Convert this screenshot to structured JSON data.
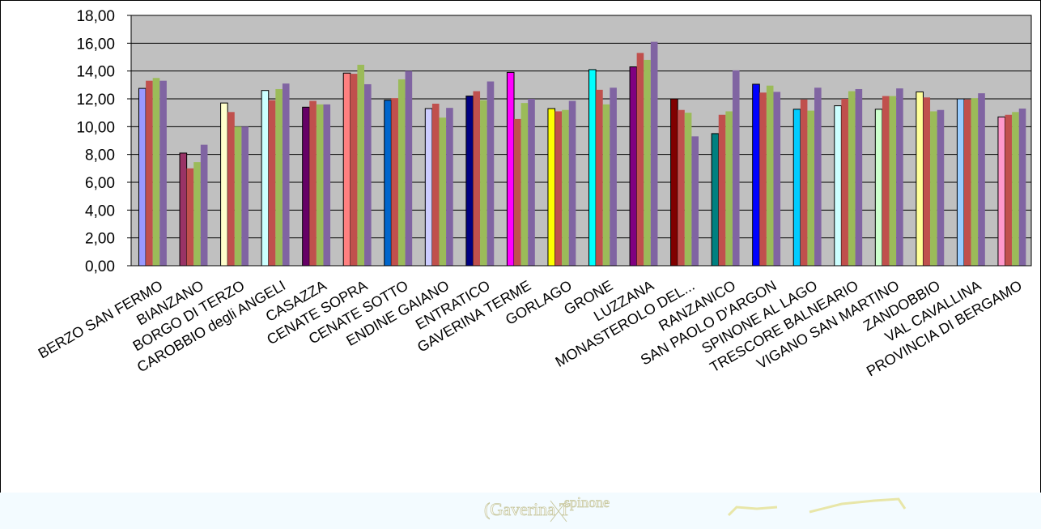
{
  "chart_data": {
    "type": "bar",
    "title": "",
    "xlabel": "",
    "ylabel": "",
    "ylim": [
      0,
      18
    ],
    "yticks": [
      "0,00",
      "2,00",
      "4,00",
      "6,00",
      "8,00",
      "10,00",
      "12,00",
      "14,00",
      "16,00",
      "18,00"
    ],
    "grid": true,
    "legend": "none",
    "plot_background": "#c0c0c0",
    "categories": [
      "BERZO SAN FERMO",
      "BIANZANO",
      "BORGO DI TERZO",
      "CAROBBIO degli ANGELI",
      "CASAZZA",
      "CENATE SOPRA",
      "CENATE SOTTO",
      "ENDINE GAIANO",
      "ENTRATICO",
      "GAVERINA TERME",
      "GORLAGO",
      "GRONE",
      "LUZZANA",
      "MONASTEROLO DEL...",
      "RANZANICO",
      "SAN PAOLO D'ARGON",
      "SPINONE AL LAGO",
      "TRESCORE BALNEARIO",
      "VIGANO SAN MARTINO",
      "ZANDOBBIO",
      "VAL CAVALLINA",
      "PROVINCIA DI BERGAMO"
    ],
    "first_bar_colors": [
      "#9999ff",
      "#993366",
      "#ffffcc",
      "#ccffff",
      "#660066",
      "#ff8080",
      "#0066cc",
      "#ccccff",
      "#000080",
      "#ff00ff",
      "#ffff00",
      "#00ffff",
      "#800080",
      "#800000",
      "#008080",
      "#0000ff",
      "#00ccff",
      "#ccffff",
      "#ccffcc",
      "#ffff99",
      "#99ccff",
      "#ff99cc"
    ],
    "series_colors": [
      "#c0504d",
      "#9bbb59",
      "#8064a2"
    ],
    "series": [
      {
        "values": [
          12.75,
          8.1,
          11.7,
          12.6,
          11.4,
          13.85,
          11.9,
          11.3,
          12.2,
          13.9,
          11.3,
          14.1,
          14.3,
          12.0,
          9.5,
          13.05,
          11.25,
          11.5,
          11.25,
          12.5,
          12.0,
          10.7
        ]
      },
      {
        "values": [
          13.3,
          7.0,
          11.05,
          11.9,
          11.85,
          13.8,
          12.05,
          11.65,
          12.55,
          10.55,
          11.1,
          12.65,
          15.3,
          11.2,
          10.85,
          12.45,
          11.95,
          12.0,
          12.2,
          12.1,
          11.95,
          10.85
        ]
      },
      {
        "values": [
          13.5,
          7.45,
          10.0,
          12.7,
          11.6,
          14.45,
          13.4,
          10.65,
          11.9,
          11.7,
          11.2,
          11.6,
          14.8,
          11.0,
          11.1,
          12.95,
          11.15,
          12.55,
          12.2,
          11.1,
          12.05,
          11.05
        ]
      },
      {
        "values": [
          13.3,
          8.7,
          10.0,
          13.1,
          11.6,
          13.05,
          14.0,
          11.35,
          13.25,
          12.0,
          11.85,
          12.8,
          16.1,
          9.3,
          14.05,
          12.5,
          12.8,
          12.7,
          12.75,
          11.2,
          12.4,
          11.3
        ]
      }
    ]
  },
  "overlay": {
    "map_text": "(Gaverina T",
    "map_text_2": "spinone",
    "strip_color": "#f3fbff",
    "map_line_color": "#e8e6a8"
  }
}
